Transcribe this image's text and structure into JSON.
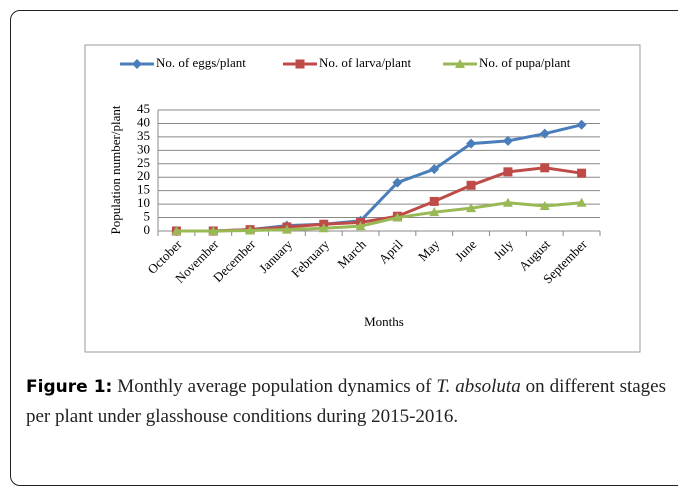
{
  "chart_data": {
    "type": "line",
    "categories": [
      "October",
      "November",
      "December",
      "January",
      "February",
      "March",
      "April",
      "May",
      "June",
      "July",
      "August",
      "September"
    ],
    "series": [
      {
        "name": "No. of eggs/plant",
        "color": "#4a7ebb",
        "marker": "diamond",
        "values": [
          0,
          0,
          0.5,
          2,
          2.5,
          3.8,
          18,
          23,
          32.5,
          33.5,
          36.2,
          39.5
        ]
      },
      {
        "name": "No. of larva/plant",
        "color": "#be4b48",
        "marker": "square",
        "values": [
          0,
          0,
          0.5,
          1.5,
          2.5,
          3.2,
          5.5,
          11,
          17,
          22,
          23.5,
          21.5
        ]
      },
      {
        "name": "No. of pupa/plant",
        "color": "#98b954",
        "marker": "triangle",
        "values": [
          0,
          0,
          0.2,
          0.5,
          1,
          1.8,
          5,
          7,
          8.5,
          10.5,
          9.3,
          10.5
        ]
      }
    ],
    "ylim": [
      0,
      45
    ],
    "yticks": [
      0,
      5,
      10,
      15,
      20,
      25,
      30,
      35,
      40,
      45
    ],
    "grid": true,
    "ylabel": "Population number/plant",
    "xlabel": "Months",
    "legend": "top"
  },
  "caption": {
    "label": "Figure 1:",
    "before": "Monthly average population dynamics of ",
    "italic": "T. absoluta",
    "after": " on different stages per plant under glasshouse conditions during 2015-2016."
  }
}
